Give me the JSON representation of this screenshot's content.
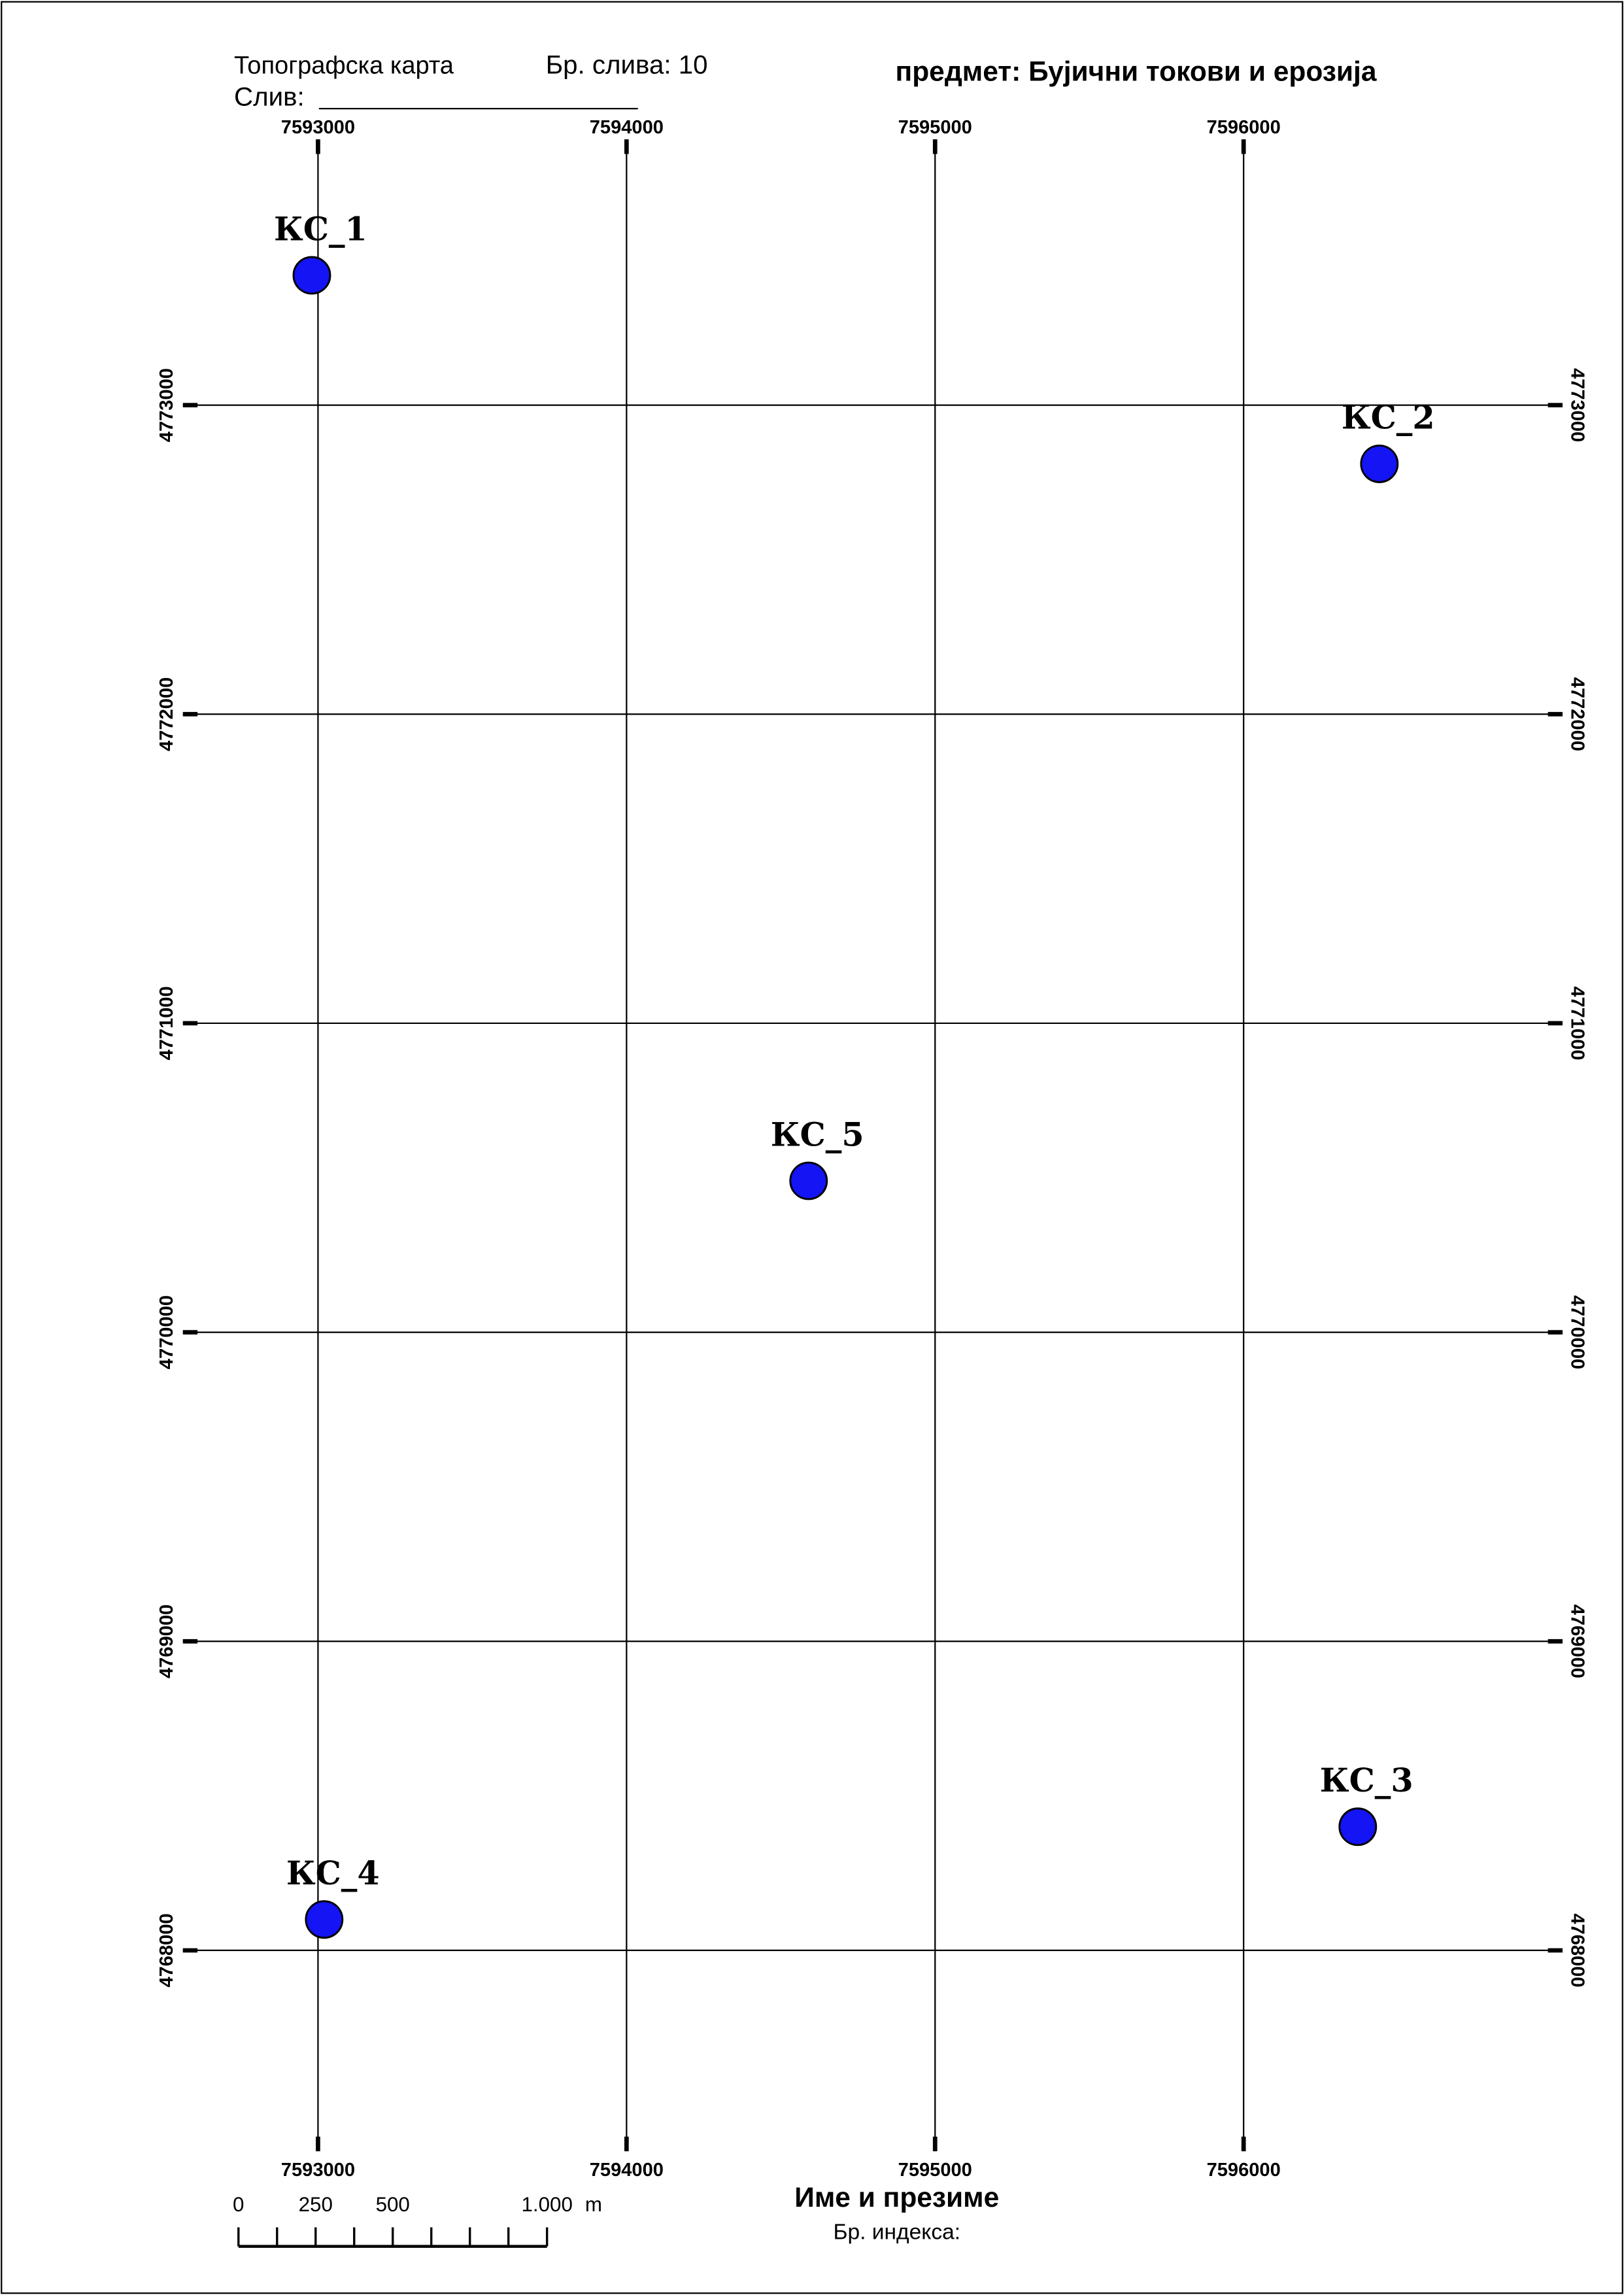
{
  "header": {
    "map_type": "Топографска карта",
    "basin_number": "Бр. слива: 10",
    "basin": "Слив:",
    "subject": "предмет: Бујични токови и ерозија"
  },
  "map": {
    "xlim": [
      7592600,
      7597010
    ],
    "ylim": [
      4767350,
      4773860
    ],
    "xticks": [
      7593000,
      7594000,
      7595000,
      7596000
    ],
    "yticks": [
      4768000,
      4769000,
      4770000,
      4771000,
      4772000,
      4773000
    ],
    "point_color": "#1414f5",
    "points": [
      {
        "name": "КС_1",
        "x": 7592980,
        "y": 4773420
      },
      {
        "name": "КС_2",
        "x": 7596440,
        "y": 4772810
      },
      {
        "name": "КС_3",
        "x": 7596370,
        "y": 4768400
      },
      {
        "name": "КС_4",
        "x": 7593020,
        "y": 4768100
      },
      {
        "name": "КС_5",
        "x": 7594590,
        "y": 4770490
      }
    ]
  },
  "scale_bar": {
    "ticks": [
      0,
      125,
      250,
      375,
      500,
      625,
      750,
      875,
      1000
    ],
    "labels": [
      0,
      250,
      500,
      {
        "value": 1000,
        "label": "1.000"
      }
    ],
    "unit": "m"
  },
  "footer": {
    "name": "Име и презиме",
    "index": "Бр. индекса:"
  }
}
